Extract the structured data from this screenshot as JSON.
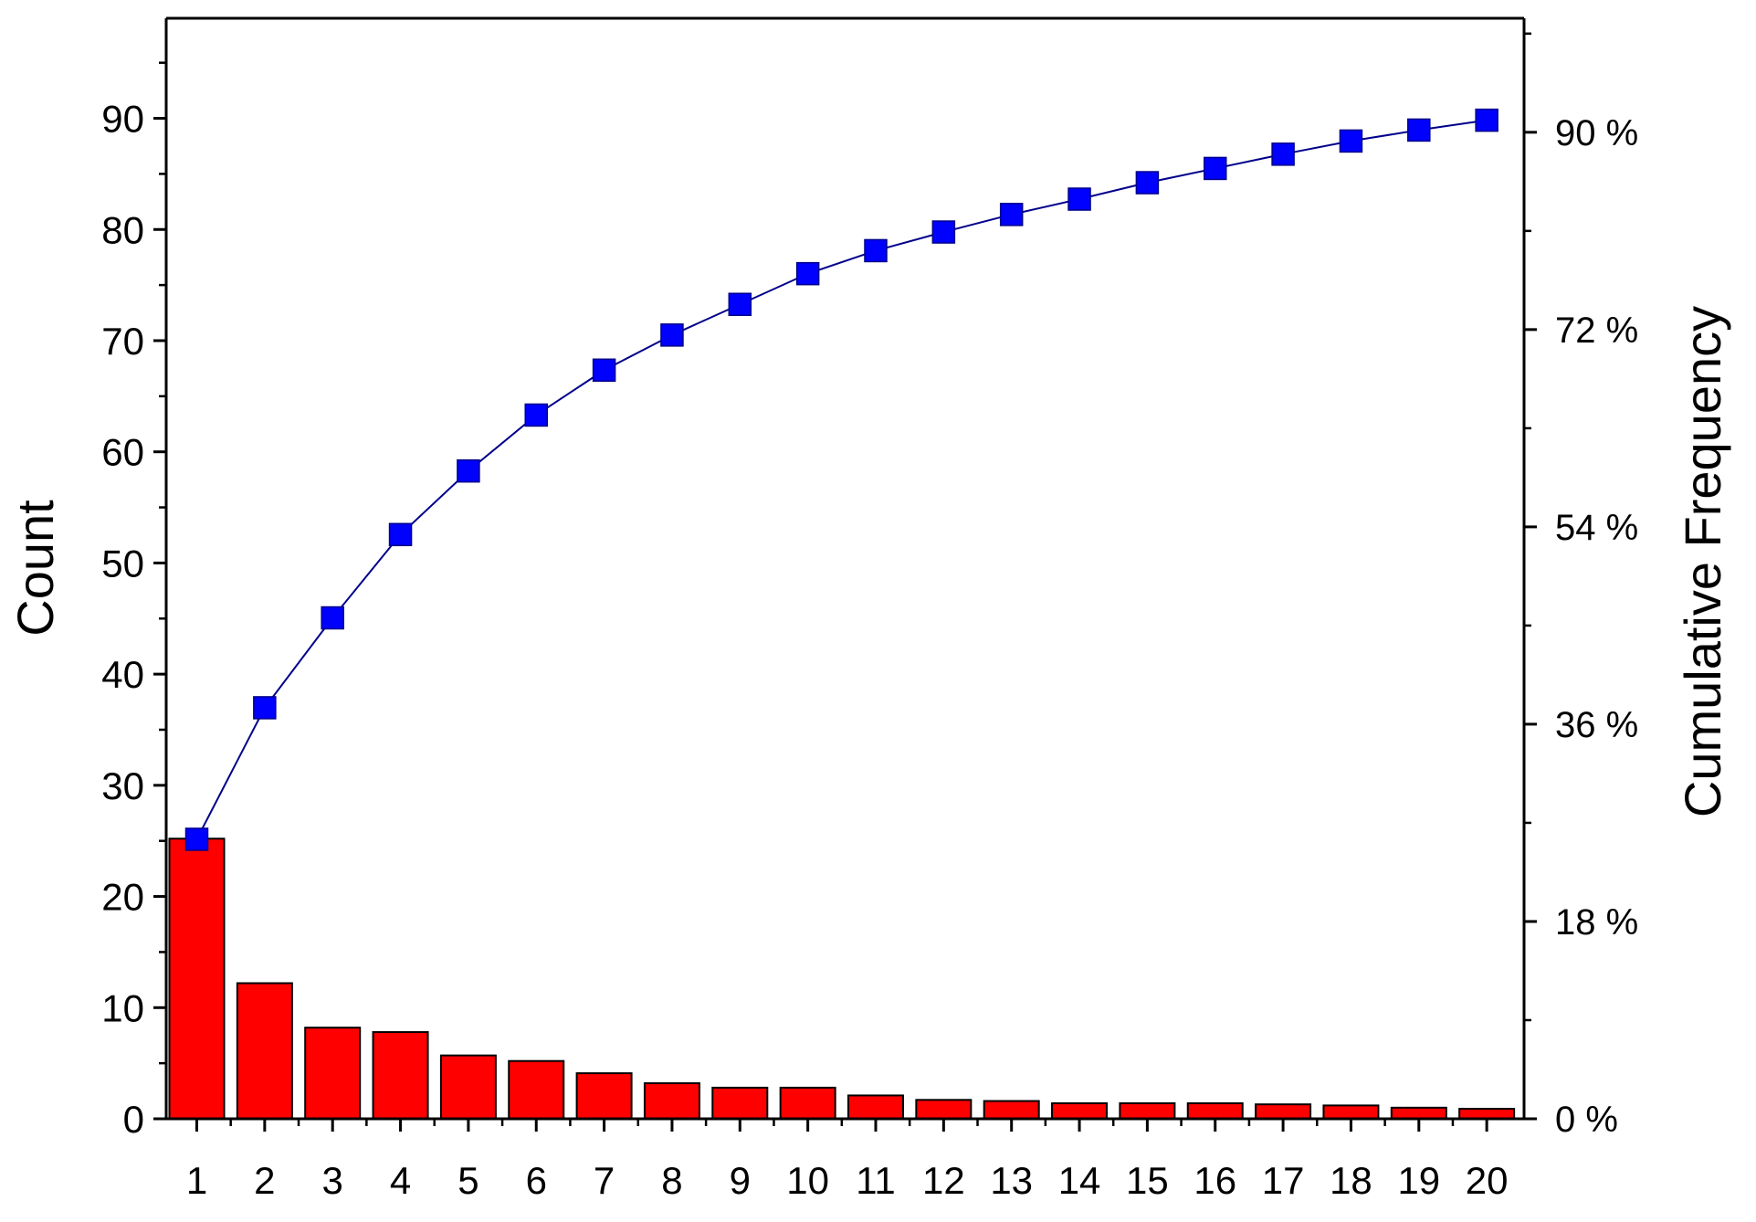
{
  "chart_data": {
    "type": "bar",
    "categories": [
      "1",
      "2",
      "3",
      "4",
      "5",
      "6",
      "7",
      "8",
      "9",
      "10",
      "11",
      "12",
      "13",
      "14",
      "15",
      "16",
      "17",
      "18",
      "19",
      "20"
    ],
    "series": [
      {
        "type": "bar",
        "axis": "left",
        "values": [
          25.2,
          12.2,
          8.2,
          7.8,
          5.7,
          5.2,
          4.1,
          3.2,
          2.8,
          2.8,
          2.1,
          1.7,
          1.6,
          1.4,
          1.4,
          1.4,
          1.3,
          1.2,
          1.0,
          0.9
        ],
        "color": "#ff0000",
        "edge_color": "#000000"
      },
      {
        "type": "line",
        "axis": "right",
        "marker": "square",
        "values": [
          25.5,
          37.5,
          45.7,
          53.3,
          59.1,
          64.2,
          68.3,
          71.5,
          74.3,
          77.1,
          79.2,
          80.9,
          82.5,
          83.9,
          85.4,
          86.7,
          88.0,
          89.2,
          90.2,
          91.1
        ],
        "color": "#0000ff",
        "line_color": "#00008b"
      }
    ],
    "xlabel": "",
    "ylabel": "Count",
    "y2label": "Cumulative Frequency",
    "ylim": [
      0,
      99.0
    ],
    "y2lim": [
      0,
      100.4
    ],
    "yticks": [
      0,
      10,
      20,
      30,
      40,
      50,
      60,
      70,
      80,
      90
    ],
    "ytick_labels": [
      "0",
      "10",
      "20",
      "30",
      "40",
      "50",
      "60",
      "70",
      "80",
      "90"
    ],
    "y2ticks": [
      0,
      18,
      36,
      54,
      72,
      90
    ],
    "y2tick_labels": [
      "0 %",
      "18 %",
      "36 %",
      "54 %",
      "72 %",
      "90 %"
    ],
    "grid": false,
    "legend": "none"
  }
}
